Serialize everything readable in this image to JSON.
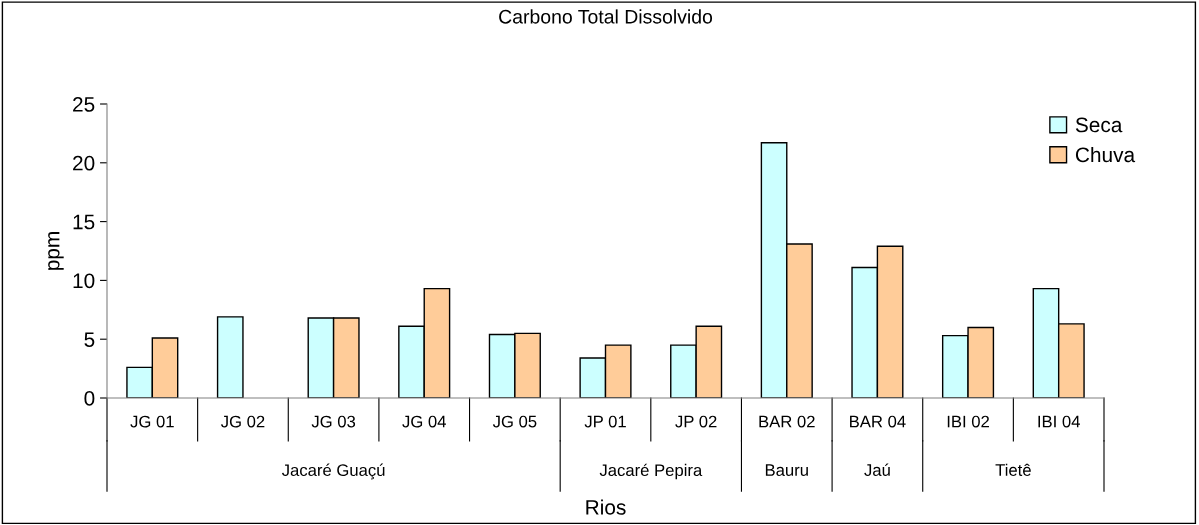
{
  "chart_data": {
    "type": "bar",
    "title": "Carbono Total Dissolvido",
    "xlabel": "Rios",
    "ylabel": "ppm",
    "categories": [
      "JG 01",
      "JG 02",
      "JG 03",
      "JG 04",
      "JG 05",
      "JP 01",
      "JP 02",
      "BAR 02",
      "BAR 04",
      "IBI 02",
      "IBI 04"
    ],
    "series": [
      {
        "name": "Seca",
        "color": "#ccffff",
        "values": [
          2.6,
          6.9,
          6.8,
          6.1,
          5.4,
          3.4,
          4.5,
          21.7,
          11.1,
          5.3,
          9.3
        ]
      },
      {
        "name": "Chuva",
        "color": "#ffcc99",
        "values": [
          5.1,
          null,
          6.8,
          9.3,
          5.5,
          4.5,
          6.1,
          13.1,
          12.9,
          6.0,
          6.3
        ]
      }
    ],
    "annotations": [
      "Jacaré Guaçú",
      "Jacaré Pepira",
      "Bauru",
      "Jaú",
      "Tietê"
    ],
    "ylim": [
      0,
      25
    ],
    "yticks": [
      0,
      5,
      10,
      15,
      20,
      25
    ],
    "grid": false,
    "legend": "top right"
  }
}
